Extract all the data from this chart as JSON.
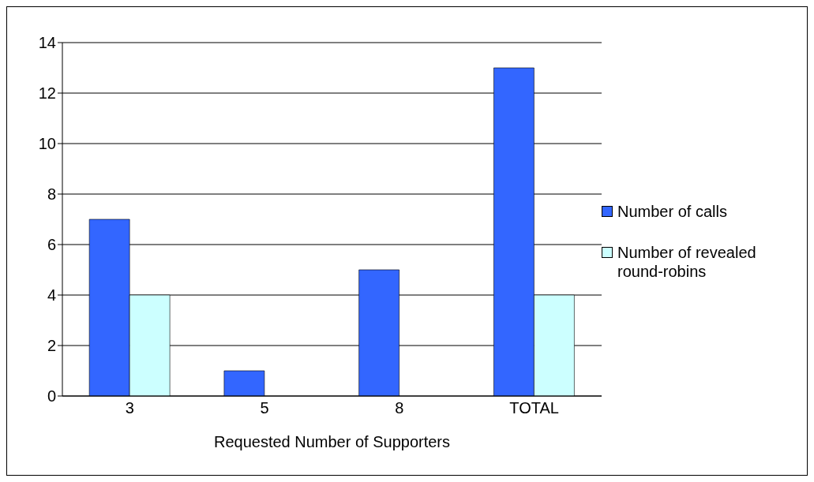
{
  "chart_data": {
    "type": "bar",
    "xlabel": "Requested Number of Supporters",
    "categories": [
      "3",
      "5",
      "8",
      "TOTAL"
    ],
    "series": [
      {
        "name": "Number of calls",
        "color": "#3366ff",
        "values": [
          7,
          1,
          5,
          13
        ]
      },
      {
        "name": "Number of revealed round-robins",
        "color": "#ccffff",
        "values": [
          4,
          0,
          0,
          4
        ]
      }
    ],
    "ylim": [
      0,
      14
    ],
    "yticks": [
      0,
      2,
      4,
      6,
      8,
      10,
      12,
      14
    ],
    "grid": "y",
    "legend": "right"
  }
}
